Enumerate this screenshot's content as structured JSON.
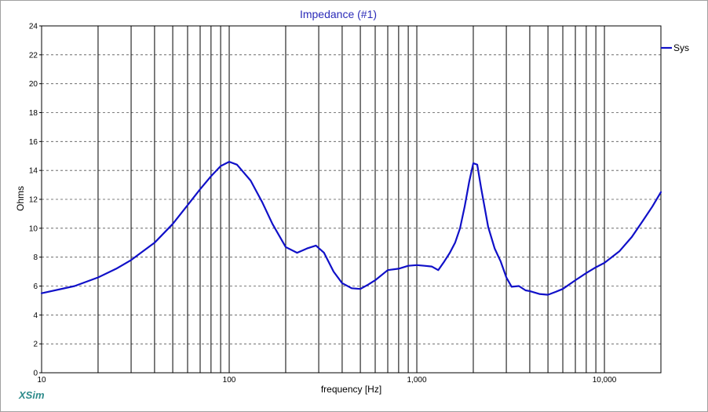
{
  "window": {
    "brand": "XSim"
  },
  "chart_data": {
    "type": "line",
    "title": "Impedance (#1)",
    "xlabel": "frequency [Hz]",
    "ylabel": "Ohms",
    "x_scale": "log",
    "xlim": [
      10,
      20000
    ],
    "ylim": [
      0,
      24
    ],
    "x_major_ticks": [
      10,
      100,
      1000,
      10000
    ],
    "x_tick_labels": [
      "10",
      "100",
      "1,000",
      "10,000"
    ],
    "y_ticks": [
      0,
      2,
      4,
      6,
      8,
      10,
      12,
      14,
      16,
      18,
      20,
      22,
      24
    ],
    "y_tick_labels": [
      "0",
      "2",
      "4",
      "6",
      "8",
      "10",
      "12",
      "14",
      "16",
      "18",
      "20",
      "22",
      "24"
    ],
    "x_grid_lines": [
      20,
      30,
      40,
      50,
      60,
      70,
      80,
      90,
      100,
      200,
      300,
      400,
      500,
      600,
      700,
      800,
      900,
      1000,
      2000,
      3000,
      4000,
      5000,
      6000,
      7000,
      8000,
      9000,
      10000
    ],
    "y_grid": "dashed",
    "legend": {
      "position": "top-right",
      "entries": [
        "Sys"
      ]
    },
    "series": [
      {
        "name": "Sys",
        "color": "#1010c8",
        "x": [
          10,
          15,
          20,
          25,
          30,
          40,
          50,
          60,
          70,
          80,
          90,
          100,
          110,
          130,
          150,
          170,
          200,
          230,
          260,
          290,
          320,
          360,
          400,
          450,
          500,
          550,
          600,
          700,
          800,
          900,
          1000,
          1100,
          1200,
          1300,
          1400,
          1500,
          1600,
          1700,
          1800,
          1900,
          2000,
          2100,
          2200,
          2400,
          2600,
          2800,
          3000,
          3200,
          3500,
          3800,
          4000,
          4500,
          5000,
          5500,
          6000,
          7000,
          8000,
          9000,
          10000,
          12000,
          14000,
          16000,
          18000,
          20000
        ],
        "y": [
          5.5,
          6.0,
          6.6,
          7.2,
          7.8,
          9.0,
          10.3,
          11.6,
          12.7,
          13.6,
          14.3,
          14.6,
          14.4,
          13.3,
          11.8,
          10.3,
          8.7,
          8.3,
          8.6,
          8.8,
          8.3,
          7.0,
          6.2,
          5.85,
          5.8,
          6.1,
          6.4,
          7.1,
          7.2,
          7.4,
          7.45,
          7.4,
          7.35,
          7.1,
          7.7,
          8.3,
          9.0,
          10.0,
          11.5,
          13.2,
          14.5,
          14.4,
          12.8,
          10.1,
          8.6,
          7.7,
          6.6,
          5.95,
          6.0,
          5.7,
          5.65,
          5.45,
          5.4,
          5.6,
          5.8,
          6.4,
          6.9,
          7.3,
          7.6,
          8.4,
          9.4,
          10.5,
          11.5,
          12.5
        ]
      }
    ]
  }
}
